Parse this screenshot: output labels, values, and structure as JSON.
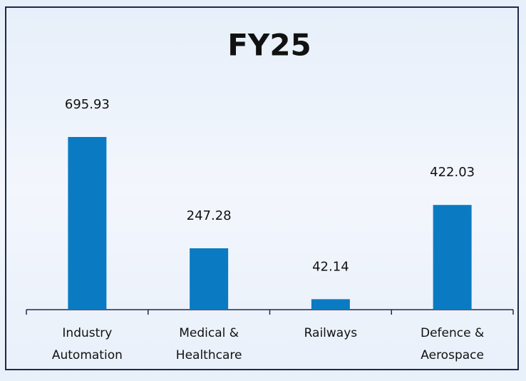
{
  "chart_data": {
    "type": "bar",
    "title": "FY25",
    "categories": [
      "Industry Automation",
      "Medical & Healthcare",
      "Railways",
      "Defence & Aerospace"
    ],
    "values": [
      695.93,
      247.28,
      42.14,
      422.03
    ],
    "color": "#0a7bc2"
  }
}
